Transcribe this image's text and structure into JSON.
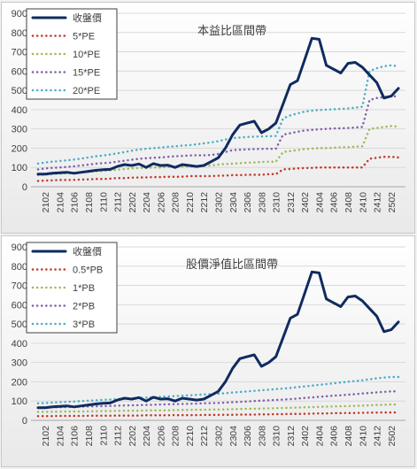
{
  "chart_data": [
    {
      "type": "line",
      "title": "本益比區間帶",
      "ylim": [
        0,
        900
      ],
      "yticks": [
        0,
        100,
        200,
        300,
        400,
        500,
        600,
        700,
        800,
        900
      ],
      "grid": true,
      "legend_position": "top-left",
      "x": [
        "2101",
        "2102",
        "2103",
        "2104",
        "2105",
        "2106",
        "2107",
        "2108",
        "2109",
        "2110",
        "2111",
        "2112",
        "2201",
        "2202",
        "2203",
        "2204",
        "2205",
        "2206",
        "2207",
        "2208",
        "2209",
        "2210",
        "2211",
        "2212",
        "2301",
        "2302",
        "2303",
        "2304",
        "2305",
        "2306",
        "2307",
        "2308",
        "2309",
        "2310",
        "2311",
        "2312",
        "2401",
        "2402",
        "2403",
        "2404",
        "2405",
        "2406",
        "2407",
        "2408",
        "2409",
        "2410",
        "2411",
        "2412",
        "2501",
        "2502",
        "2503"
      ],
      "xtick_labels": [
        "2102",
        "2104",
        "2106",
        "2108",
        "2110",
        "2112",
        "2202",
        "2204",
        "2206",
        "2208",
        "2210",
        "2212",
        "2302",
        "2304",
        "2306",
        "2308",
        "2310",
        "2312",
        "2402",
        "2404",
        "2406",
        "2408",
        "2410",
        "2412",
        "2502"
      ],
      "series": [
        {
          "name": "收盤價",
          "color": "#0f2b60",
          "width": 3,
          "dash": "",
          "values": [
            65,
            65,
            70,
            72,
            75,
            70,
            75,
            80,
            85,
            88,
            90,
            105,
            115,
            110,
            118,
            100,
            120,
            110,
            112,
            100,
            115,
            110,
            105,
            110,
            130,
            150,
            200,
            270,
            320,
            330,
            340,
            280,
            300,
            330,
            430,
            530,
            550,
            660,
            770,
            765,
            630,
            610,
            590,
            640,
            645,
            620,
            580,
            540,
            460,
            470,
            510
          ]
        },
        {
          "name": "5*PE",
          "color": "#c0392b",
          "width": 2.5,
          "dash": "0.1 5",
          "values": [
            30,
            32,
            33,
            35,
            35,
            36,
            37,
            38,
            40,
            40,
            42,
            45,
            45,
            47,
            48,
            48,
            50,
            50,
            52,
            52,
            52,
            55,
            55,
            55,
            55,
            57,
            58,
            60,
            60,
            62,
            62,
            62,
            65,
            65,
            90,
            92,
            95,
            97,
            98,
            100,
            100,
            100,
            100,
            100,
            100,
            100,
            145,
            150,
            155,
            155,
            152
          ]
        },
        {
          "name": "10*PE",
          "color": "#9bbb59",
          "width": 2.5,
          "dash": "0.1 5",
          "values": [
            60,
            63,
            66,
            68,
            70,
            72,
            75,
            78,
            80,
            82,
            85,
            88,
            92,
            95,
            97,
            98,
            100,
            100,
            102,
            103,
            104,
            105,
            105,
            108,
            110,
            115,
            118,
            120,
            122,
            125,
            126,
            128,
            130,
            130,
            180,
            185,
            190,
            195,
            198,
            200,
            200,
            202,
            205,
            205,
            208,
            210,
            300,
            305,
            310,
            315,
            312
          ]
        },
        {
          "name": "15*PE",
          "color": "#7f5fa8",
          "width": 2.5,
          "dash": "0.1 5",
          "values": [
            90,
            95,
            98,
            100,
            103,
            106,
            110,
            115,
            120,
            122,
            125,
            130,
            135,
            140,
            145,
            148,
            150,
            152,
            155,
            158,
            160,
            162,
            163,
            163,
            165,
            170,
            180,
            190,
            192,
            194,
            195,
            196,
            197,
            197,
            270,
            278,
            285,
            292,
            295,
            298,
            300,
            302,
            303,
            305,
            307,
            310,
            450,
            460,
            465,
            470,
            468
          ]
        },
        {
          "name": "20*PE",
          "color": "#4bacc6",
          "width": 2.5,
          "dash": "0.1 5",
          "values": [
            120,
            126,
            130,
            133,
            137,
            141,
            146,
            152,
            158,
            162,
            167,
            173,
            180,
            187,
            193,
            197,
            200,
            203,
            207,
            210,
            213,
            216,
            220,
            225,
            230,
            236,
            245,
            252,
            255,
            258,
            260,
            261,
            262,
            263,
            355,
            370,
            380,
            390,
            395,
            398,
            400,
            402,
            404,
            406,
            410,
            415,
            600,
            615,
            625,
            630,
            625
          ]
        }
      ]
    },
    {
      "type": "line",
      "title": "股價淨值比區間帶",
      "ylim": [
        0,
        900
      ],
      "yticks": [
        0,
        100,
        200,
        300,
        400,
        500,
        600,
        700,
        800,
        900
      ],
      "grid": true,
      "legend_position": "top-left",
      "x": [
        "2101",
        "2102",
        "2103",
        "2104",
        "2105",
        "2106",
        "2107",
        "2108",
        "2109",
        "2110",
        "2111",
        "2112",
        "2201",
        "2202",
        "2203",
        "2204",
        "2205",
        "2206",
        "2207",
        "2208",
        "2209",
        "2210",
        "2211",
        "2212",
        "2301",
        "2302",
        "2303",
        "2304",
        "2305",
        "2306",
        "2307",
        "2308",
        "2309",
        "2310",
        "2311",
        "2312",
        "2401",
        "2402",
        "2403",
        "2404",
        "2405",
        "2406",
        "2407",
        "2408",
        "2409",
        "2410",
        "2411",
        "2412",
        "2501",
        "2502",
        "2503"
      ],
      "xtick_labels": [
        "2102",
        "2104",
        "2106",
        "2108",
        "2110",
        "2112",
        "2202",
        "2204",
        "2206",
        "2208",
        "2210",
        "2212",
        "2302",
        "2304",
        "2306",
        "2308",
        "2310",
        "2312",
        "2402",
        "2404",
        "2406",
        "2408",
        "2410",
        "2412",
        "2502"
      ],
      "series": [
        {
          "name": "收盤價",
          "color": "#0f2b60",
          "width": 3,
          "dash": "",
          "values": [
            65,
            65,
            70,
            72,
            75,
            70,
            75,
            80,
            85,
            88,
            90,
            105,
            115,
            110,
            118,
            100,
            120,
            110,
            112,
            100,
            115,
            110,
            105,
            110,
            130,
            150,
            200,
            270,
            320,
            330,
            340,
            280,
            300,
            330,
            430,
            530,
            550,
            660,
            770,
            765,
            630,
            610,
            590,
            640,
            645,
            620,
            580,
            540,
            460,
            470,
            510
          ]
        },
        {
          "name": "0.5*PB",
          "color": "#c0392b",
          "width": 2.5,
          "dash": "0.1 5",
          "values": [
            22,
            22,
            22,
            23,
            23,
            23,
            23,
            24,
            24,
            24,
            24,
            25,
            25,
            25,
            25,
            26,
            26,
            26,
            26,
            27,
            27,
            27,
            27,
            28,
            28,
            28,
            29,
            29,
            30,
            30,
            30,
            31,
            31,
            32,
            32,
            33,
            33,
            34,
            35,
            36,
            36,
            37,
            37,
            38,
            38,
            39,
            40,
            40,
            41,
            41,
            41
          ]
        },
        {
          "name": "1*PB",
          "color": "#9bbb59",
          "width": 2.5,
          "dash": "0.1 5",
          "values": [
            44,
            44,
            45,
            45,
            46,
            46,
            46,
            47,
            47,
            48,
            48,
            49,
            50,
            50,
            50,
            51,
            52,
            52,
            52,
            53,
            54,
            54,
            55,
            55,
            56,
            56,
            57,
            58,
            59,
            60,
            60,
            61,
            62,
            63,
            64,
            65,
            66,
            68,
            69,
            70,
            71,
            72,
            73,
            74,
            75,
            76,
            78,
            80,
            81,
            82,
            82
          ]
        },
        {
          "name": "2*PB",
          "color": "#7f5fa8",
          "width": 2.5,
          "dash": "0.1 5",
          "values": [
            66,
            67,
            68,
            68,
            69,
            70,
            71,
            72,
            73,
            74,
            75,
            76,
            77,
            78,
            79,
            80,
            81,
            82,
            83,
            84,
            85,
            86,
            87,
            88,
            89,
            90,
            92,
            94,
            96,
            98,
            100,
            102,
            104,
            106,
            108,
            110,
            113,
            116,
            119,
            122,
            125,
            128,
            130,
            133,
            136,
            139,
            142,
            145,
            148,
            150,
            150
          ]
        },
        {
          "name": "3*PB",
          "color": "#4bacc6",
          "width": 2.5,
          "dash": "0.1 5",
          "values": [
            88,
            90,
            92,
            94,
            96,
            98,
            100,
            102,
            104,
            106,
            108,
            110,
            112,
            114,
            116,
            118,
            120,
            122,
            124,
            126,
            128,
            130,
            132,
            134,
            136,
            138,
            141,
            144,
            147,
            150,
            153,
            156,
            159,
            162,
            165,
            168,
            172,
            176,
            180,
            184,
            188,
            192,
            196,
            200,
            204,
            208,
            213,
            218,
            222,
            225,
            225
          ]
        }
      ]
    }
  ]
}
